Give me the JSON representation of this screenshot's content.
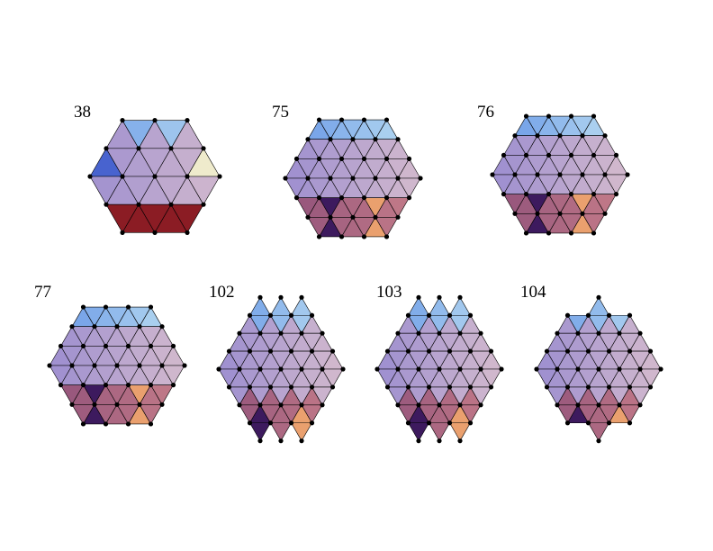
{
  "clusters": [
    {
      "label": "38"
    },
    {
      "label": "75"
    },
    {
      "label": "76"
    },
    {
      "label": "77"
    },
    {
      "label": "102"
    },
    {
      "label": "103"
    },
    {
      "label": "104"
    }
  ]
}
